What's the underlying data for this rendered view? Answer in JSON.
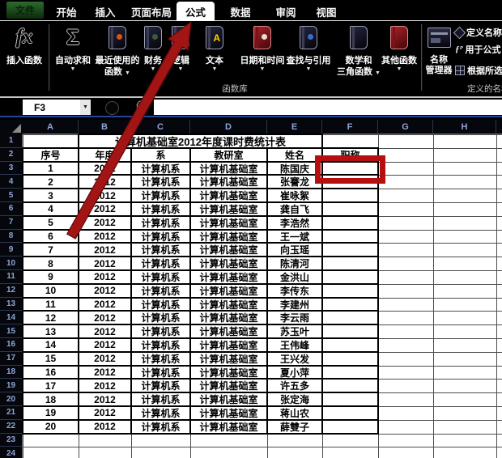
{
  "glyphs": {
    "dropdown": "▼",
    "sigma": "Σ",
    "fx": "fx",
    "fx_small": "ƒᴾ",
    "text_badge": "A",
    "name_box_arrow": "▼"
  },
  "colors": {
    "accent_red": "#b50f0f",
    "tab_green": "#1f4f1f",
    "header_text": "#8fa5d6"
  },
  "tab_bar": {
    "file_tab": "文件",
    "tabs": [
      {
        "label": "开始",
        "selected": false
      },
      {
        "label": "插入",
        "selected": false
      },
      {
        "label": "页面布局",
        "selected": false
      },
      {
        "label": "公式",
        "selected": true
      },
      {
        "label": "数据",
        "selected": false
      },
      {
        "label": "审阅",
        "selected": false
      },
      {
        "label": "视图",
        "selected": false
      }
    ]
  },
  "ribbon": {
    "insert_function_label": "插入函数",
    "function_library": {
      "group_label": "函数库",
      "buttons": [
        {
          "id": "autosum",
          "lines": [
            "自动求和"
          ]
        },
        {
          "id": "recent",
          "lines": [
            "最近使用的",
            "函数"
          ]
        },
        {
          "id": "financial",
          "lines": [
            "财务"
          ]
        },
        {
          "id": "logical",
          "lines": [
            "逻辑"
          ]
        },
        {
          "id": "text",
          "lines": [
            "文本"
          ]
        },
        {
          "id": "datetime",
          "lines": [
            "日期和时间"
          ]
        },
        {
          "id": "lookup",
          "lines": [
            "查找与引用"
          ]
        },
        {
          "id": "math",
          "lines": [
            "数学和",
            "三角函数"
          ]
        },
        {
          "id": "more",
          "lines": [
            "其他函数"
          ]
        }
      ]
    },
    "defined_names": {
      "group_label": "定义的名称",
      "name_manager_lines": [
        "名称",
        "管理器"
      ],
      "small_buttons": [
        {
          "label": "定义名称"
        },
        {
          "label": "用于公式"
        },
        {
          "label": "根据所选内容创建"
        }
      ]
    }
  },
  "formula_bar": {
    "name_box_value": "F3",
    "fx_label": "fx",
    "formula_value": ""
  },
  "sheet": {
    "column_letters": [
      "A",
      "B",
      "C",
      "D",
      "E",
      "F",
      "G",
      "H"
    ],
    "row_numbers": [
      1,
      2,
      3,
      4,
      5,
      6,
      7,
      8,
      9,
      10,
      11,
      12,
      13,
      14,
      15,
      16,
      17,
      18,
      19,
      20,
      21,
      22,
      23,
      24
    ],
    "selection": {
      "cell": "F3"
    },
    "table": {
      "title": "计算机基础室2012年度课时费统计表",
      "headers": [
        "序号",
        "年度",
        "系",
        "教研室",
        "姓名",
        "职称"
      ],
      "rows": [
        {
          "no": "1",
          "year": "2012",
          "dept": "计算机系",
          "office": "计算机基础室",
          "name": "陈国庆",
          "title": ""
        },
        {
          "no": "2",
          "year": "2012",
          "dept": "计算机系",
          "office": "计算机基础室",
          "name": "张謇龙",
          "title": ""
        },
        {
          "no": "3",
          "year": "2012",
          "dept": "计算机系",
          "office": "计算机基础室",
          "name": "崔咏絮",
          "title": ""
        },
        {
          "no": "4",
          "year": "2012",
          "dept": "计算机系",
          "office": "计算机基础室",
          "name": "龚自飞",
          "title": ""
        },
        {
          "no": "5",
          "year": "2012",
          "dept": "计算机系",
          "office": "计算机基础室",
          "name": "李浩然",
          "title": ""
        },
        {
          "no": "6",
          "year": "2012",
          "dept": "计算机系",
          "office": "计算机基础室",
          "name": "王一斌",
          "title": ""
        },
        {
          "no": "7",
          "year": "2012",
          "dept": "计算机系",
          "office": "计算机基础室",
          "name": "向玉瑶",
          "title": ""
        },
        {
          "no": "8",
          "year": "2012",
          "dept": "计算机系",
          "office": "计算机基础室",
          "name": "陈清河",
          "title": ""
        },
        {
          "no": "9",
          "year": "2012",
          "dept": "计算机系",
          "office": "计算机基础室",
          "name": "金洪山",
          "title": ""
        },
        {
          "no": "10",
          "year": "2012",
          "dept": "计算机系",
          "office": "计算机基础室",
          "name": "李传东",
          "title": ""
        },
        {
          "no": "11",
          "year": "2012",
          "dept": "计算机系",
          "office": "计算机基础室",
          "name": "李建州",
          "title": ""
        },
        {
          "no": "12",
          "year": "2012",
          "dept": "计算机系",
          "office": "计算机基础室",
          "name": "李云雨",
          "title": ""
        },
        {
          "no": "13",
          "year": "2012",
          "dept": "计算机系",
          "office": "计算机基础室",
          "name": "苏玉叶",
          "title": ""
        },
        {
          "no": "14",
          "year": "2012",
          "dept": "计算机系",
          "office": "计算机基础室",
          "name": "王伟峰",
          "title": ""
        },
        {
          "no": "15",
          "year": "2012",
          "dept": "计算机系",
          "office": "计算机基础室",
          "name": "王兴发",
          "title": ""
        },
        {
          "no": "16",
          "year": "2012",
          "dept": "计算机系",
          "office": "计算机基础室",
          "name": "夏小萍",
          "title": ""
        },
        {
          "no": "17",
          "year": "2012",
          "dept": "计算机系",
          "office": "计算机基础室",
          "name": "许五多",
          "title": ""
        },
        {
          "no": "18",
          "year": "2012",
          "dept": "计算机系",
          "office": "计算机基础室",
          "name": "张定海",
          "title": ""
        },
        {
          "no": "19",
          "year": "2012",
          "dept": "计算机系",
          "office": "计算机基础室",
          "name": "蒋山农",
          "title": ""
        },
        {
          "no": "20",
          "year": "2012",
          "dept": "计算机系",
          "office": "计算机基础室",
          "name": "薛雙子",
          "title": ""
        }
      ]
    }
  }
}
